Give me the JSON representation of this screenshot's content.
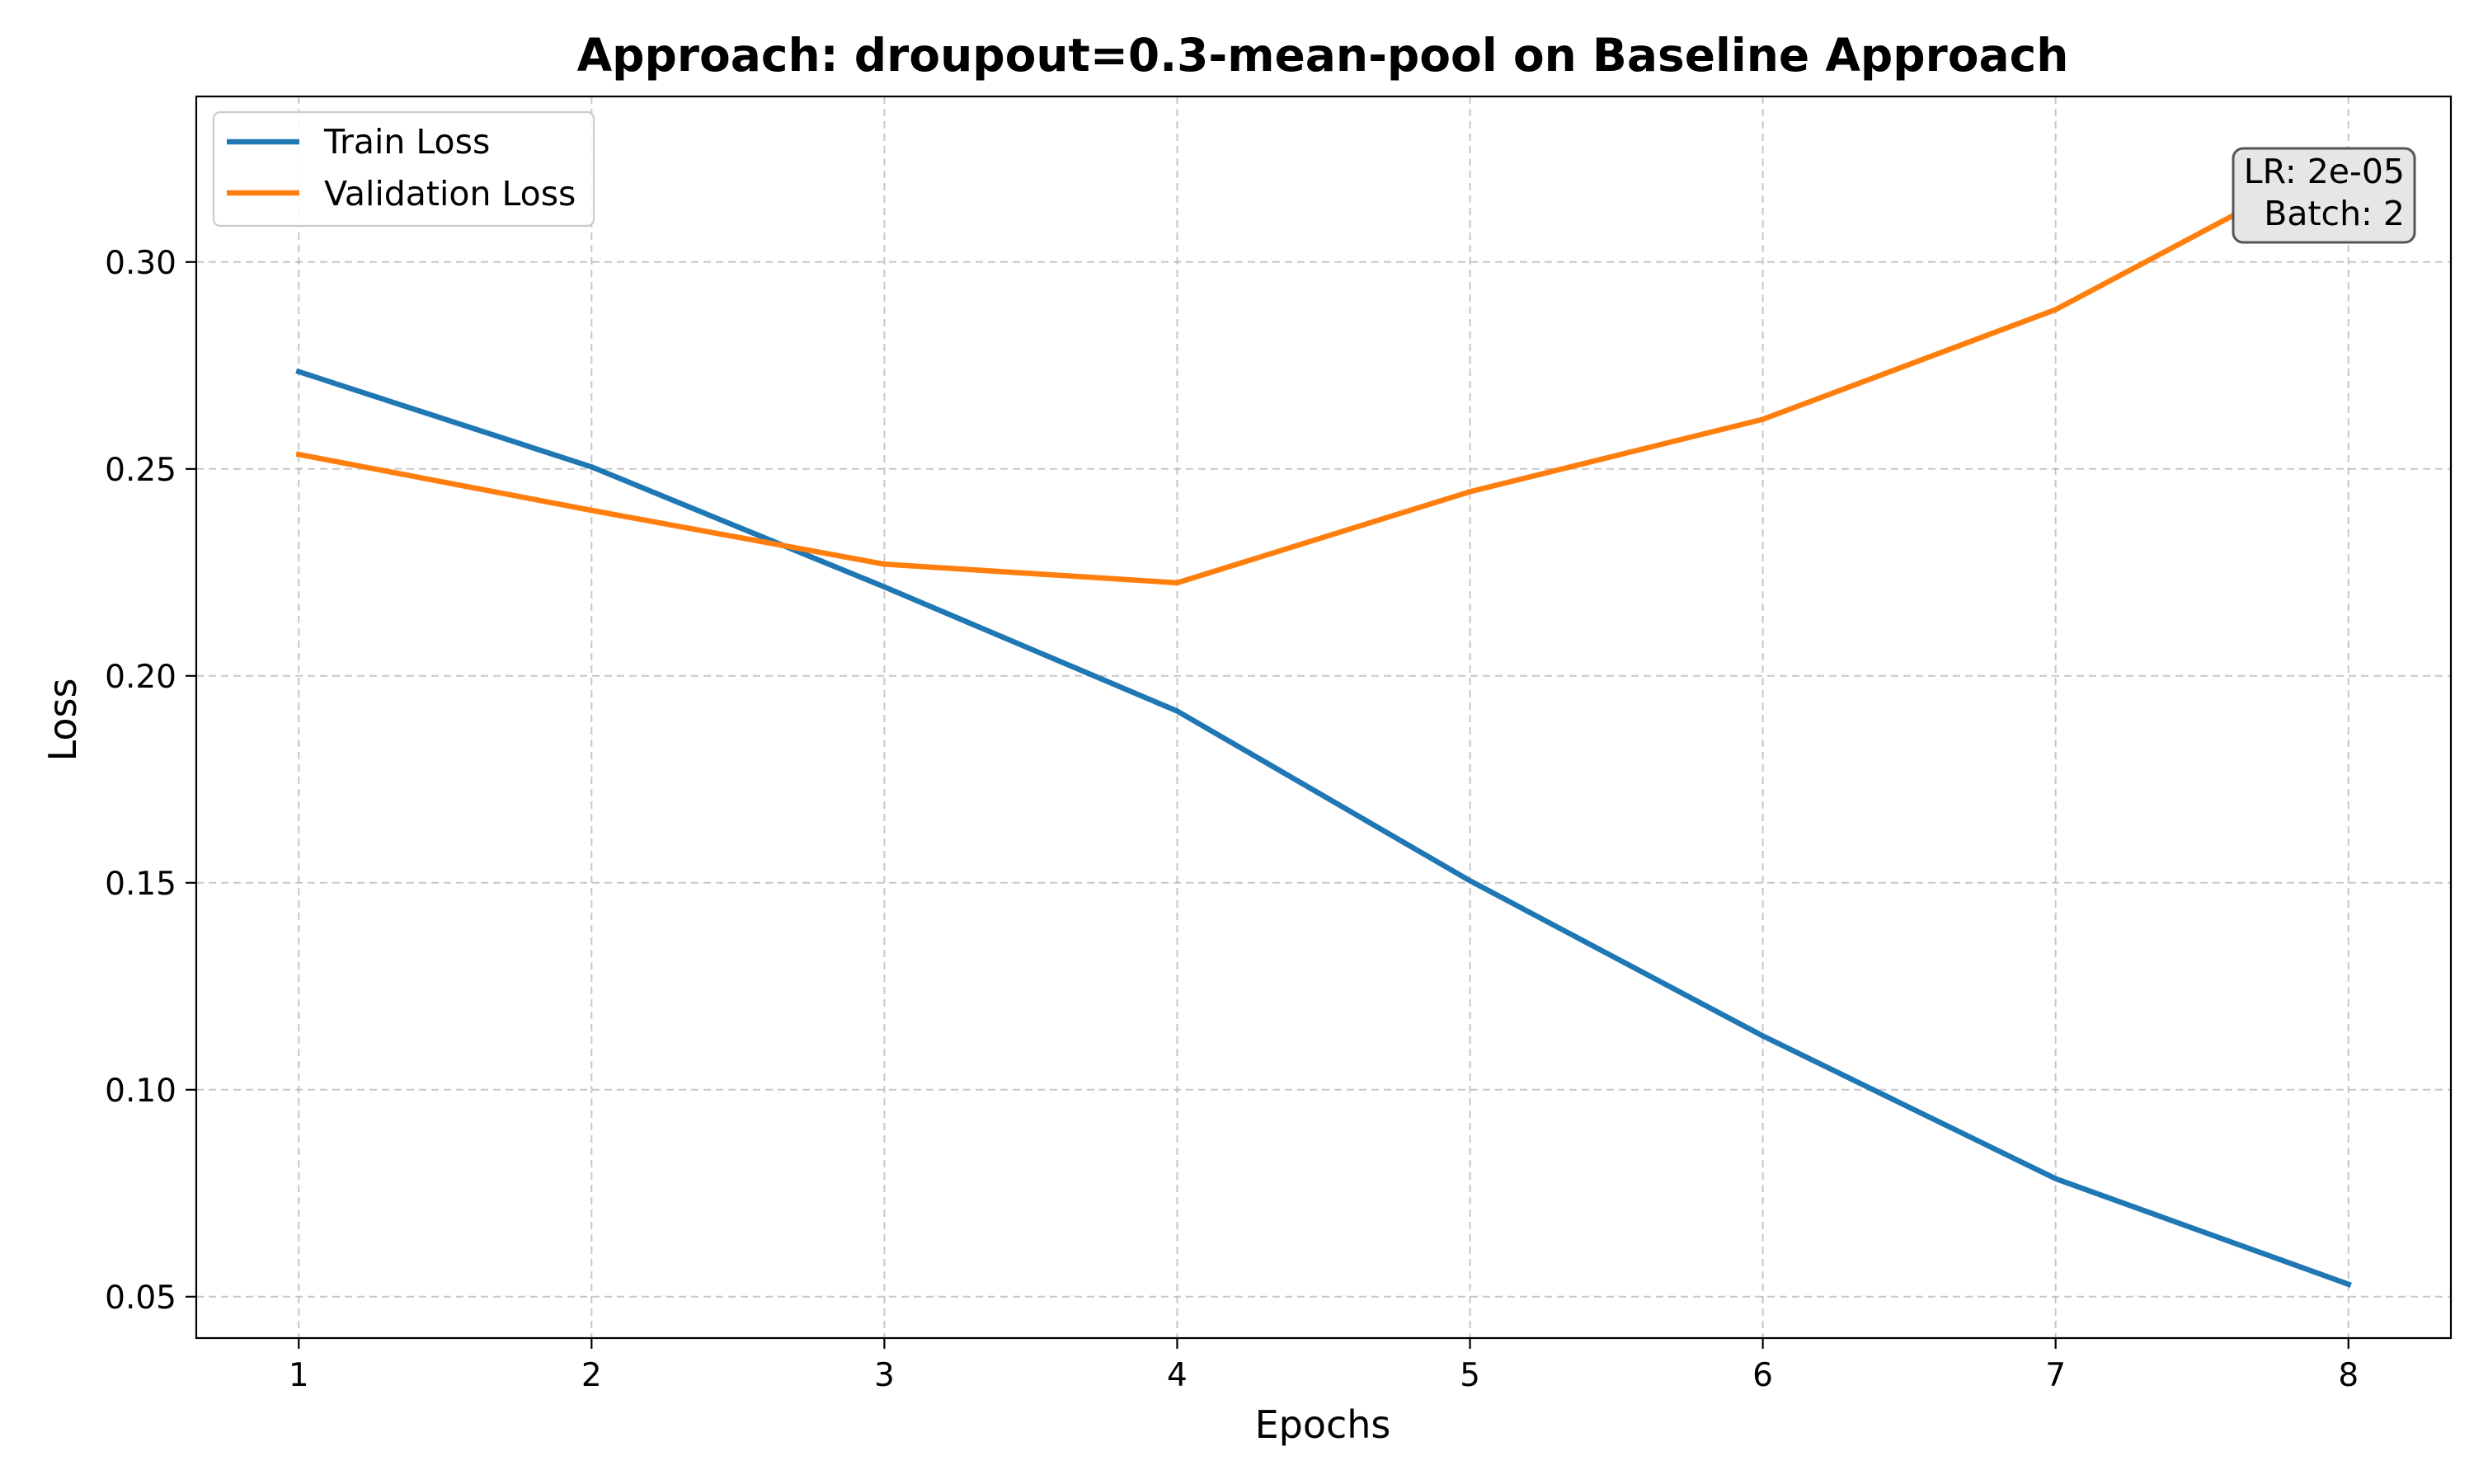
{
  "chart_data": {
    "type": "line",
    "title": "Approach: droupout=0.3-mean-pool on Baseline Approach",
    "xlabel": "Epochs",
    "ylabel": "Loss",
    "x": [
      1,
      2,
      3,
      4,
      5,
      6,
      7,
      8
    ],
    "xlim": [
      0.65,
      8.35
    ],
    "ylim": [
      0.04,
      0.34
    ],
    "xticks": [
      1,
      2,
      3,
      4,
      5,
      6,
      7,
      8
    ],
    "yticks": [
      0.05,
      0.1,
      0.15,
      0.2,
      0.25,
      0.3
    ],
    "ytick_labels": [
      "0.05",
      "0.10",
      "0.15",
      "0.20",
      "0.25",
      "0.30"
    ],
    "grid": true,
    "legend_position": "top-left",
    "series": [
      {
        "name": "Train Loss",
        "color": "#1f77b4",
        "values": [
          0.2735,
          0.2505,
          0.2215,
          0.1915,
          0.1505,
          0.113,
          0.0785,
          0.053
        ]
      },
      {
        "name": "Validation Loss",
        "color": "#ff7f0e",
        "values": [
          0.2535,
          0.24,
          0.227,
          0.2225,
          0.2445,
          0.262,
          0.2885,
          0.326
        ]
      }
    ],
    "annotation": {
      "lines": [
        "LR: 2e-05",
        "Batch: 2"
      ],
      "position": "top-right"
    }
  }
}
